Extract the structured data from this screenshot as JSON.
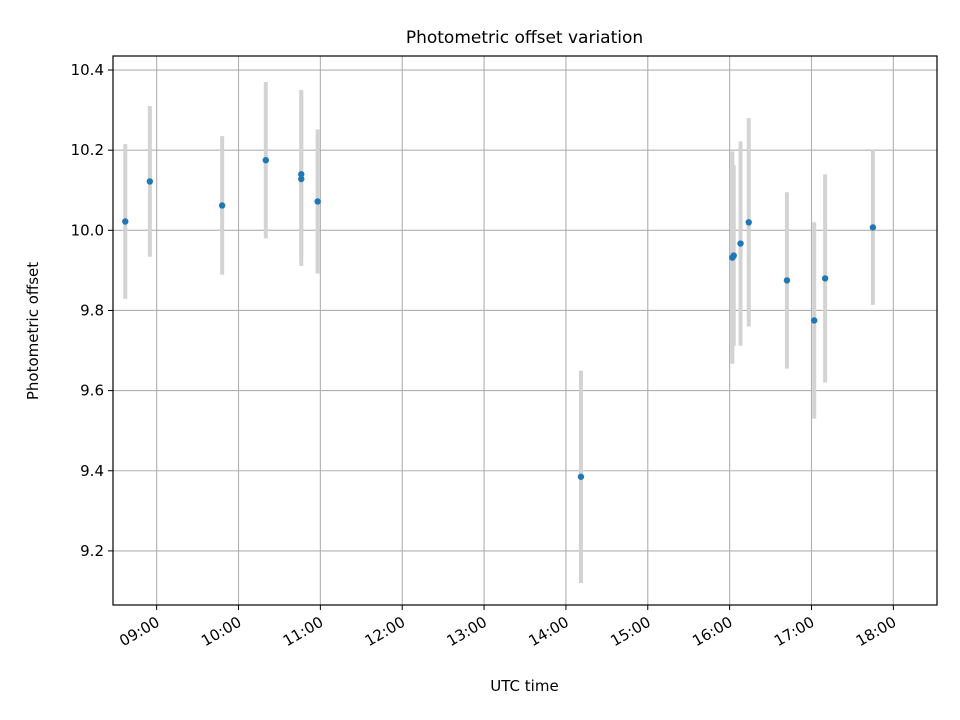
{
  "chart_data": {
    "type": "scatter",
    "title": "Photometric offset variation",
    "xlabel": "UTC time",
    "ylabel": "Photometric offset",
    "x_tick_labels": [
      "09:00",
      "10:00",
      "11:00",
      "12:00",
      "13:00",
      "14:00",
      "15:00",
      "16:00",
      "17:00",
      "18:00"
    ],
    "y_tick_labels": [
      "9.2",
      "9.4",
      "9.6",
      "9.8",
      "10.0",
      "10.2",
      "10.4"
    ],
    "y_ticks": [
      9.2,
      9.4,
      9.6,
      9.8,
      10.0,
      10.2,
      10.4
    ],
    "xlim": [
      "08:28",
      "18:32"
    ],
    "ylim": [
      9.065,
      10.435
    ],
    "grid": true,
    "colors": {
      "points": "#1f77b4",
      "errorbars": "#d3d3d3",
      "grid": "#b0b0b0"
    },
    "series": [
      {
        "x": [
          "08:37",
          "08:55",
          "09:48",
          "10:20",
          "10:46",
          "10:46",
          "10:58",
          "14:11",
          "16:02",
          "16:03",
          "16:08",
          "16:14",
          "16:42",
          "17:02",
          "17:10",
          "17:45"
        ],
        "y": [
          10.022,
          10.122,
          10.062,
          10.175,
          10.128,
          10.14,
          10.072,
          9.385,
          9.932,
          9.937,
          9.967,
          10.02,
          9.875,
          9.775,
          9.88,
          10.007
        ],
        "err": [
          0.193,
          0.188,
          0.173,
          0.195,
          0.217,
          0.21,
          0.18,
          0.265,
          0.265,
          0.225,
          0.255,
          0.26,
          0.22,
          0.245,
          0.26,
          0.193
        ]
      }
    ]
  }
}
